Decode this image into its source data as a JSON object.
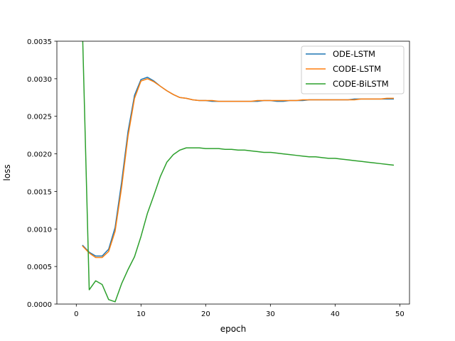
{
  "chart_data": {
    "type": "line",
    "title": "",
    "xlabel": "epoch",
    "ylabel": "loss",
    "xlim": [
      -3,
      51.5
    ],
    "ylim": [
      0,
      0.0035
    ],
    "xticks": [
      0,
      10,
      20,
      30,
      40,
      50
    ],
    "xtick_labels": [
      "0",
      "10",
      "20",
      "30",
      "40",
      "50"
    ],
    "yticks": [
      0,
      0.0005,
      0.001,
      0.0015,
      0.002,
      0.0025,
      0.003,
      0.0035
    ],
    "ytick_labels": [
      "0.0000",
      "0.0005",
      "0.0010",
      "0.0015",
      "0.0020",
      "0.0025",
      "0.0030",
      "0.0035"
    ],
    "grid": false,
    "legend_position": "top-right",
    "x": [
      1,
      2,
      3,
      4,
      5,
      6,
      7,
      8,
      9,
      10,
      11,
      12,
      13,
      14,
      15,
      16,
      17,
      18,
      19,
      20,
      21,
      22,
      23,
      24,
      25,
      26,
      27,
      28,
      29,
      30,
      31,
      32,
      33,
      34,
      35,
      36,
      37,
      38,
      39,
      40,
      41,
      42,
      43,
      44,
      45,
      46,
      47,
      48,
      49
    ],
    "series": [
      {
        "name": "ODE-LSTM",
        "color": "#1f77b4",
        "values": [
          0.00078,
          0.00069,
          0.00064,
          0.00064,
          0.00073,
          0.00102,
          0.00162,
          0.0023,
          0.00278,
          0.00299,
          0.00302,
          0.00297,
          0.0029,
          0.00284,
          0.00279,
          0.00275,
          0.00274,
          0.00272,
          0.00271,
          0.00271,
          0.0027,
          0.0027,
          0.0027,
          0.0027,
          0.0027,
          0.0027,
          0.0027,
          0.0027,
          0.00271,
          0.00271,
          0.0027,
          0.0027,
          0.00271,
          0.00271,
          0.00271,
          0.00272,
          0.00272,
          0.00272,
          0.00272,
          0.00272,
          0.00272,
          0.00272,
          0.00273,
          0.00273,
          0.00273,
          0.00273,
          0.00273,
          0.00273,
          0.00273
        ]
      },
      {
        "name": "CODE-LSTM",
        "color": "#ff7f0e",
        "values": [
          0.00077,
          0.00068,
          0.00062,
          0.00062,
          0.0007,
          0.00097,
          0.00155,
          0.00224,
          0.00274,
          0.00297,
          0.003,
          0.00296,
          0.0029,
          0.00284,
          0.00279,
          0.00275,
          0.00274,
          0.00272,
          0.00271,
          0.00271,
          0.00271,
          0.0027,
          0.0027,
          0.0027,
          0.0027,
          0.0027,
          0.0027,
          0.00271,
          0.00271,
          0.00271,
          0.00271,
          0.00271,
          0.00271,
          0.00271,
          0.00272,
          0.00272,
          0.00272,
          0.00272,
          0.00272,
          0.00272,
          0.00272,
          0.00272,
          0.00272,
          0.00273,
          0.00273,
          0.00273,
          0.00273,
          0.00274,
          0.00274
        ]
      },
      {
        "name": "CODE-BiLSTM",
        "color": "#2ca02c",
        "values": [
          0.0035,
          0.00019,
          0.00031,
          0.00026,
          6e-05,
          3e-05,
          0.00027,
          0.00046,
          0.00063,
          0.0009,
          0.00121,
          0.00145,
          0.0017,
          0.00189,
          0.00199,
          0.00205,
          0.00208,
          0.00208,
          0.00208,
          0.00207,
          0.00207,
          0.00207,
          0.00206,
          0.00206,
          0.00205,
          0.00205,
          0.00204,
          0.00203,
          0.00202,
          0.00202,
          0.00201,
          0.002,
          0.00199,
          0.00198,
          0.00197,
          0.00196,
          0.00196,
          0.00195,
          0.00194,
          0.00194,
          0.00193,
          0.00192,
          0.00191,
          0.0019,
          0.00189,
          0.00188,
          0.00187,
          0.00186,
          0.00185
        ],
        "note_x_override": [
          1,
          1
        ]
      }
    ]
  }
}
